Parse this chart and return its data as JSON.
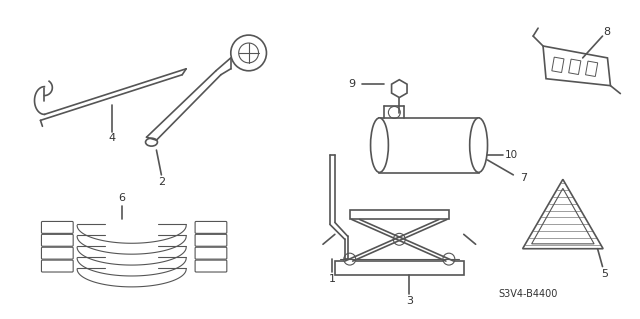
{
  "bg_color": "#ffffff",
  "line_color": "#555555",
  "label_color": "#333333",
  "part_code": "S3V4-B4400",
  "figsize": [
    6.4,
    3.19
  ],
  "dpi": 100
}
